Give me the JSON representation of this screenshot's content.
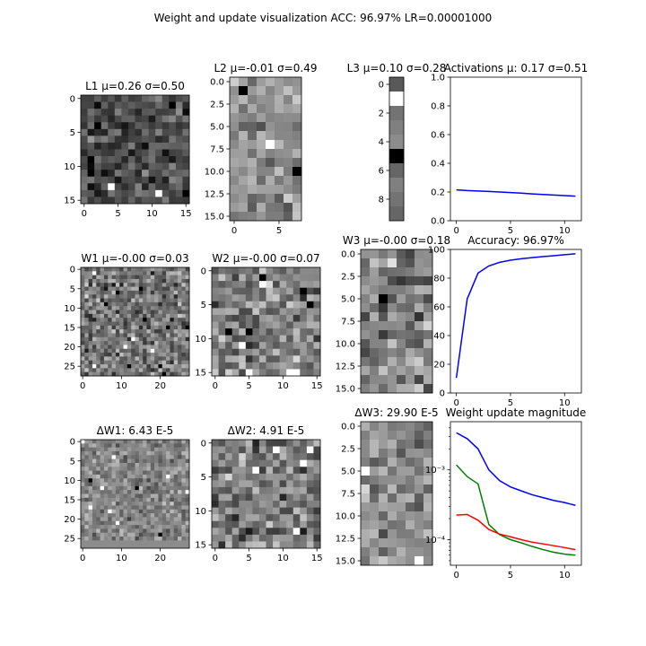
{
  "suptitle": "Weight and update visualization ACC: 96.97% LR=0.00001000",
  "panels": [
    {
      "id": "L1",
      "title": "L1 μ=0.26 σ=0.50",
      "title_color": "#000000",
      "rows": 16,
      "cols": 16,
      "seed": 11,
      "mean": 0.3,
      "spread": 0.17,
      "xticks": [
        0,
        5,
        10,
        15
      ],
      "yticks": [
        0,
        5,
        10,
        15
      ]
    },
    {
      "id": "L2",
      "title": "L2 μ=-0.01 σ=0.49",
      "title_color": "#000000",
      "rows": 16,
      "cols": 8,
      "seed": 23,
      "mean": 0.58,
      "spread": 0.17,
      "xticks": [
        0,
        5
      ],
      "yticks": [
        0.0,
        2.5,
        5.0,
        7.5,
        10.0,
        12.5,
        15.0
      ]
    },
    {
      "id": "L3",
      "title": "L3 μ=0.10 σ=0.28",
      "title_color": "#000000",
      "rows": 10,
      "cols": 1,
      "seed": 37,
      "mean": 0.45,
      "spread": 0.15,
      "xticks": [],
      "yticks": [
        0,
        2,
        4,
        6,
        8
      ],
      "fixed_values": [
        0.35,
        1.0,
        0.45,
        0.5,
        0.55,
        0.0,
        0.4,
        0.5,
        0.45,
        0.4
      ]
    },
    {
      "id": "W1",
      "title": "W1 μ=-0.00 σ=0.03",
      "title_color": "#000000",
      "rows": 28,
      "cols": 28,
      "seed": 41,
      "mean": 0.45,
      "spread": 0.2,
      "xticks": [
        0,
        10,
        20
      ],
      "yticks": [
        0,
        5,
        10,
        15,
        20,
        25
      ]
    },
    {
      "id": "W2",
      "title": "W2 μ=-0.00 σ=0.07",
      "title_color": "#000000",
      "rows": 16,
      "cols": 16,
      "seed": 53,
      "mean": 0.5,
      "spread": 0.2,
      "xticks": [
        0,
        5,
        10,
        15
      ],
      "yticks": [
        0,
        5,
        10,
        15
      ]
    },
    {
      "id": "W3",
      "title": "W3 μ=-0.00 σ=0.18",
      "title_color": "#000000",
      "rows": 16,
      "cols": 8,
      "seed": 67,
      "mean": 0.52,
      "spread": 0.2,
      "xticks": [],
      "yticks": [
        0.0,
        2.5,
        5.0,
        7.5,
        10.0,
        12.5,
        15.0
      ]
    },
    {
      "id": "dW1",
      "title": "ΔW1: 6.43 E-5",
      "title_color": "#ff0000",
      "rows": 28,
      "cols": 28,
      "seed": 71,
      "mean": 0.52,
      "spread": 0.14,
      "flat_bottom": 2,
      "xticks": [
        0,
        10,
        20
      ],
      "yticks": [
        0,
        5,
        10,
        15,
        20,
        25
      ]
    },
    {
      "id": "dW2",
      "title": "ΔW2: 4.91 E-5",
      "title_color": "#008000",
      "rows": 16,
      "cols": 16,
      "seed": 83,
      "mean": 0.48,
      "spread": 0.22,
      "xticks": [
        0,
        5,
        10,
        15
      ],
      "yticks": [
        0,
        5,
        10,
        15
      ]
    },
    {
      "id": "dW3",
      "title": "ΔW3: 29.90 E-5",
      "title_color": "#0000ff",
      "rows": 16,
      "cols": 8,
      "seed": 97,
      "mean": 0.55,
      "spread": 0.16,
      "xticks": [],
      "yticks": [
        0.0,
        2.5,
        5.0,
        7.5,
        10.0,
        12.5,
        15.0
      ]
    }
  ],
  "chart_data": [
    {
      "type": "line",
      "title": "Activations μ: 0.17 σ=0.51",
      "x": [
        0,
        1,
        2,
        3,
        4,
        5,
        6,
        7,
        8,
        9,
        10,
        11
      ],
      "series": [
        {
          "color": "#0000ff",
          "values": [
            0.215,
            0.21,
            0.207,
            0.204,
            0.2,
            0.196,
            0.192,
            0.187,
            0.183,
            0.179,
            0.175,
            0.171
          ]
        }
      ],
      "xlim": [
        -0.55,
        11.55
      ],
      "ylim": [
        0,
        1.0
      ],
      "xticks": [
        0,
        5,
        10
      ],
      "yticks": [
        0.0,
        0.2,
        0.4,
        0.6,
        0.8,
        1.0
      ],
      "ytick_labels": [
        "0.0",
        "0.2",
        "0.4",
        "0.6",
        "0.8",
        "1.0"
      ],
      "yscale": "linear",
      "grid": false
    },
    {
      "type": "line",
      "title": "Accuracy: 96.97%",
      "x": [
        0,
        1,
        2,
        3,
        4,
        5,
        6,
        7,
        8,
        9,
        10,
        11
      ],
      "series": [
        {
          "color": "#0000ff",
          "values": [
            10.5,
            65.5,
            83.5,
            88.5,
            91.0,
            92.5,
            93.5,
            94.3,
            95.0,
            95.6,
            96.3,
            96.97
          ]
        }
      ],
      "xlim": [
        -0.55,
        11.55
      ],
      "ylim": [
        0,
        100
      ],
      "xticks": [
        0,
        5,
        10
      ],
      "yticks": [
        0,
        20,
        40,
        60,
        80,
        100
      ],
      "ytick_labels": [
        "0",
        "20",
        "40",
        "60",
        "80",
        "100"
      ],
      "yscale": "linear",
      "grid": false
    },
    {
      "type": "line",
      "title": "Weight update magnitude",
      "x": [
        0,
        1,
        2,
        3,
        4,
        5,
        6,
        7,
        8,
        9,
        10,
        11
      ],
      "series": [
        {
          "color": "#0000ff",
          "values": [
            0.0034,
            0.0028,
            0.002,
            0.001,
            0.0007,
            0.00057,
            0.0005,
            0.00044,
            0.0004,
            0.000365,
            0.00034,
            0.00031
          ]
        },
        {
          "color": "#008000",
          "values": [
            0.00118,
            0.0008,
            0.00063,
            0.000165,
            0.000118,
            0.0001,
            9e-05,
            8e-05,
            7.2e-05,
            6.6e-05,
            6.2e-05,
            6e-05
          ]
        },
        {
          "color": "#ff0000",
          "values": [
            0.000225,
            0.00023,
            0.00019,
            0.00014,
            0.00012,
            0.00011,
            0.0001,
            9.2e-05,
            8.7e-05,
            8.2e-05,
            7.7e-05,
            7.2e-05
          ]
        }
      ],
      "xlim": [
        -0.55,
        11.55
      ],
      "ylim": [
        4.3e-05,
        0.0049
      ],
      "xticks": [
        0,
        5,
        10
      ],
      "yticks": [
        0.001,
        0.0001
      ],
      "ytick_labels": [
        "10⁻³",
        "10⁻⁴"
      ],
      "yscale": "log",
      "grid": false
    }
  ]
}
